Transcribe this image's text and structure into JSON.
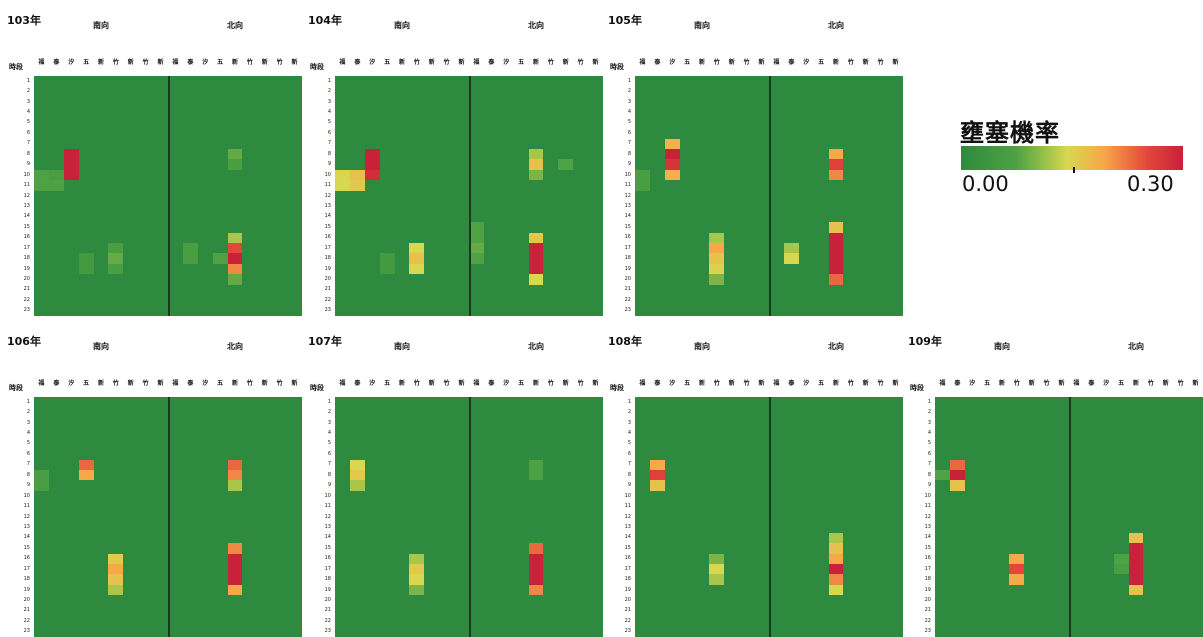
{
  "legend": {
    "title": "壅塞機率",
    "min_label": "0.00",
    "max_label": "0.30",
    "colors": [
      "#2e8a3e",
      "#4ea243",
      "#d7d84f",
      "#f7a94a",
      "#e2473a",
      "#c8213a"
    ]
  },
  "hour_header": "時段",
  "hours": [
    "1",
    "2",
    "3",
    "4",
    "5",
    "6",
    "7",
    "8",
    "9",
    "10",
    "11",
    "12",
    "13",
    "14",
    "15",
    "16",
    "17",
    "18",
    "19",
    "20",
    "21",
    "22",
    "23"
  ],
  "chart_data": [
    {
      "type": "heatmap",
      "title": "103年",
      "groups": [
        {
          "name": "南向",
          "stations": [
            "福",
            "泰",
            "汐",
            "五",
            "新",
            "竹",
            "新",
            "竹",
            "新"
          ],
          "hotspots": [
            {
              "col": 2,
              "hours": [
                8,
                9,
                10
              ],
              "values": [
                0.3,
                0.3,
                0.3
              ]
            },
            {
              "col": 0,
              "hours": [
                10,
                11
              ],
              "values": [
                0.06,
                0.06
              ]
            },
            {
              "col": 1,
              "hours": [
                10,
                11
              ],
              "values": [
                0.05,
                0.06
              ]
            },
            {
              "col": 5,
              "hours": [
                17,
                18,
                19
              ],
              "values": [
                0.05,
                0.07,
                0.05
              ]
            },
            {
              "col": 3,
              "hours": [
                18,
                19
              ],
              "values": [
                0.04,
                0.04
              ]
            }
          ]
        },
        {
          "name": "北向",
          "stations": [
            "福",
            "泰",
            "汐",
            "五",
            "新",
            "竹",
            "新",
            "竹",
            "新"
          ],
          "hotspots": [
            {
              "col": 4,
              "hours": [
                8,
                9
              ],
              "values": [
                0.07,
                0.05
              ]
            },
            {
              "col": 4,
              "hours": [
                16,
                17,
                18,
                19,
                20
              ],
              "values": [
                0.1,
                0.24,
                0.3,
                0.2,
                0.07
              ]
            },
            {
              "col": 3,
              "hours": [
                18
              ],
              "values": [
                0.06
              ]
            },
            {
              "col": 1,
              "hours": [
                17,
                18
              ],
              "values": [
                0.05,
                0.05
              ]
            }
          ]
        }
      ]
    },
    {
      "type": "heatmap",
      "title": "104年",
      "groups": [
        {
          "name": "南向",
          "stations": [
            "福",
            "泰",
            "汐",
            "五",
            "新",
            "竹",
            "新",
            "竹",
            "新"
          ],
          "hotspots": [
            {
              "col": 2,
              "hours": [
                8,
                9,
                10
              ],
              "values": [
                0.3,
                0.3,
                0.28
              ]
            },
            {
              "col": 0,
              "hours": [
                10,
                11
              ],
              "values": [
                0.12,
                0.12
              ]
            },
            {
              "col": 1,
              "hours": [
                10,
                11
              ],
              "values": [
                0.15,
                0.14
              ]
            },
            {
              "col": 5,
              "hours": [
                17,
                18,
                19
              ],
              "values": [
                0.12,
                0.15,
                0.12
              ]
            },
            {
              "col": 3,
              "hours": [
                18,
                19
              ],
              "values": [
                0.04,
                0.04
              ]
            }
          ]
        },
        {
          "name": "北向",
          "stations": [
            "福",
            "泰",
            "汐",
            "五",
            "新",
            "竹",
            "新",
            "竹",
            "新"
          ],
          "hotspots": [
            {
              "col": 4,
              "hours": [
                8,
                9,
                10
              ],
              "values": [
                0.1,
                0.15,
                0.08
              ]
            },
            {
              "col": 6,
              "hours": [
                9
              ],
              "values": [
                0.06
              ]
            },
            {
              "col": 4,
              "hours": [
                16,
                17,
                18,
                19,
                20
              ],
              "values": [
                0.14,
                0.3,
                0.3,
                0.3,
                0.12
              ]
            },
            {
              "col": 0,
              "hours": [
                15,
                16,
                17,
                18
              ],
              "values": [
                0.06,
                0.06,
                0.07,
                0.06
              ]
            }
          ]
        }
      ]
    },
    {
      "type": "heatmap",
      "title": "105年",
      "groups": [
        {
          "name": "南向",
          "stations": [
            "福",
            "泰",
            "汐",
            "五",
            "新",
            "竹",
            "新",
            "竹",
            "新"
          ],
          "hotspots": [
            {
              "col": 2,
              "hours": [
                7,
                8,
                9,
                10
              ],
              "values": [
                0.17,
                0.3,
                0.27,
                0.17
              ]
            },
            {
              "col": 0,
              "hours": [
                10,
                11
              ],
              "values": [
                0.05,
                0.05
              ]
            },
            {
              "col": 5,
              "hours": [
                16,
                17,
                18,
                19,
                20
              ],
              "values": [
                0.1,
                0.18,
                0.15,
                0.13,
                0.08
              ]
            }
          ]
        },
        {
          "name": "北向",
          "stations": [
            "福",
            "泰",
            "汐",
            "五",
            "新",
            "竹",
            "新",
            "竹",
            "新"
          ],
          "hotspots": [
            {
              "col": 4,
              "hours": [
                8,
                9,
                10
              ],
              "values": [
                0.18,
                0.25,
                0.2
              ]
            },
            {
              "col": 4,
              "hours": [
                15,
                16,
                17,
                18,
                19,
                20
              ],
              "values": [
                0.15,
                0.3,
                0.3,
                0.3,
                0.3,
                0.22
              ]
            },
            {
              "col": 1,
              "hours": [
                17,
                18
              ],
              "values": [
                0.1,
                0.12
              ]
            }
          ]
        }
      ]
    },
    {
      "type": "heatmap",
      "title": "106年",
      "groups": [
        {
          "name": "南向",
          "stations": [
            "福",
            "泰",
            "汐",
            "五",
            "新",
            "竹",
            "新",
            "竹",
            "新"
          ],
          "hotspots": [
            {
              "col": 3,
              "hours": [
                7,
                8
              ],
              "values": [
                0.22,
                0.18
              ]
            },
            {
              "col": 0,
              "hours": [
                8,
                9
              ],
              "values": [
                0.05,
                0.05
              ]
            },
            {
              "col": 5,
              "hours": [
                16,
                17,
                18,
                19
              ],
              "values": [
                0.14,
                0.18,
                0.15,
                0.1
              ]
            }
          ]
        },
        {
          "name": "北向",
          "stations": [
            "福",
            "泰",
            "汐",
            "五",
            "新",
            "竹",
            "新",
            "竹",
            "新"
          ],
          "hotspots": [
            {
              "col": 4,
              "hours": [
                7,
                8,
                9
              ],
              "values": [
                0.22,
                0.2,
                0.1
              ]
            },
            {
              "col": 4,
              "hours": [
                15,
                16,
                17,
                18,
                19
              ],
              "values": [
                0.2,
                0.3,
                0.3,
                0.3,
                0.18
              ]
            }
          ]
        }
      ]
    },
    {
      "type": "heatmap",
      "title": "107年",
      "groups": [
        {
          "name": "南向",
          "stations": [
            "福",
            "泰",
            "汐",
            "五",
            "新",
            "竹",
            "新",
            "竹",
            "新"
          ],
          "hotspots": [
            {
              "col": 1,
              "hours": [
                7,
                8,
                9
              ],
              "values": [
                0.12,
                0.14,
                0.1
              ]
            },
            {
              "col": 5,
              "hours": [
                16,
                17,
                18,
                19
              ],
              "values": [
                0.1,
                0.14,
                0.12,
                0.08
              ]
            }
          ]
        },
        {
          "name": "北向",
          "stations": [
            "福",
            "泰",
            "汐",
            "五",
            "新",
            "竹",
            "新",
            "竹",
            "新"
          ],
          "hotspots": [
            {
              "col": 4,
              "hours": [
                7,
                8
              ],
              "values": [
                0.06,
                0.06
              ]
            },
            {
              "col": 4,
              "hours": [
                15,
                16,
                17,
                18,
                19
              ],
              "values": [
                0.22,
                0.3,
                0.3,
                0.3,
                0.2
              ]
            }
          ]
        }
      ]
    },
    {
      "type": "heatmap",
      "title": "108年",
      "groups": [
        {
          "name": "南向",
          "stations": [
            "福",
            "泰",
            "汐",
            "五",
            "新",
            "竹",
            "新",
            "竹",
            "新"
          ],
          "hotspots": [
            {
              "col": 1,
              "hours": [
                7,
                8,
                9
              ],
              "values": [
                0.18,
                0.25,
                0.15
              ]
            },
            {
              "col": 5,
              "hours": [
                16,
                17,
                18
              ],
              "values": [
                0.08,
                0.12,
                0.1
              ]
            }
          ]
        },
        {
          "name": "北向",
          "stations": [
            "福",
            "泰",
            "汐",
            "五",
            "新",
            "竹",
            "新",
            "竹",
            "新"
          ],
          "hotspots": [
            {
              "col": 4,
              "hours": [
                14,
                15,
                16,
                17,
                18,
                19
              ],
              "values": [
                0.1,
                0.15,
                0.18,
                0.3,
                0.2,
                0.12
              ]
            }
          ]
        }
      ]
    },
    {
      "type": "heatmap",
      "title": "109年",
      "groups": [
        {
          "name": "南向",
          "stations": [
            "福",
            "泰",
            "汐",
            "五",
            "新",
            "竹",
            "新",
            "竹",
            "新"
          ],
          "hotspots": [
            {
              "col": 1,
              "hours": [
                7,
                8,
                9
              ],
              "values": [
                0.22,
                0.3,
                0.15
              ]
            },
            {
              "col": 0,
              "hours": [
                8
              ],
              "values": [
                0.06
              ]
            },
            {
              "col": 5,
              "hours": [
                16,
                17,
                18
              ],
              "values": [
                0.18,
                0.24,
                0.18
              ]
            }
          ]
        },
        {
          "name": "北向",
          "stations": [
            "福",
            "泰",
            "汐",
            "五",
            "新",
            "竹",
            "新",
            "竹",
            "新"
          ],
          "hotspots": [
            {
              "col": 4,
              "hours": [
                14,
                15,
                16,
                17,
                18,
                19
              ],
              "values": [
                0.15,
                0.3,
                0.3,
                0.3,
                0.3,
                0.15
              ]
            },
            {
              "col": 3,
              "hours": [
                16,
                17
              ],
              "values": [
                0.06,
                0.05
              ]
            }
          ]
        }
      ]
    }
  ]
}
